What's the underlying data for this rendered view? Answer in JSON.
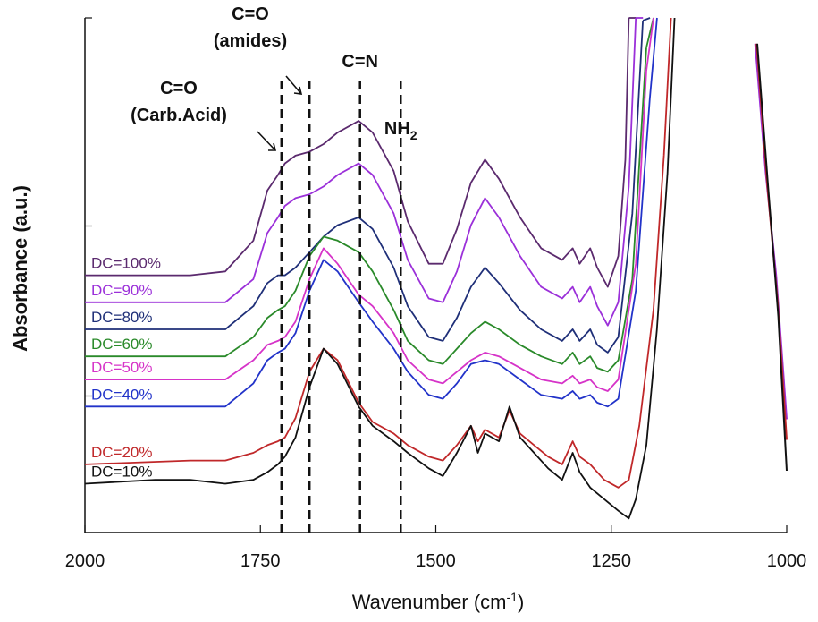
{
  "chart_data": {
    "type": "line",
    "xlabel": "Wavenumber (cm",
    "xlabel_superscript": "-1",
    "xlabel_suffix": ")",
    "ylabel": "Absorbance (a.u.)",
    "xlim": [
      2000,
      1000
    ],
    "x_reversed": true,
    "x_ticks": [
      2000,
      1750,
      1500,
      1250,
      1000
    ],
    "x_tick_labels": [
      "2000",
      "1750",
      "1500",
      "1250",
      "1000"
    ],
    "y_ticks_labeled": false,
    "annotations": [
      {
        "id": "c-o-carb-acid",
        "lines": [
          "C=O",
          "(Carb.Acid)"
        ],
        "x": 1720
      },
      {
        "id": "c-o-amides",
        "lines": [
          "C=O",
          "(amides)"
        ],
        "x": 1680
      },
      {
        "id": "c-n",
        "lines": [
          "C=N"
        ],
        "x": 1608
      },
      {
        "id": "nh2",
        "text": "NH",
        "subscript": "2",
        "x": 1550
      }
    ],
    "series": [
      {
        "name": "DC=100%",
        "color": "#5b2a6e",
        "offset": 0.62,
        "points": [
          [
            2000,
            0.0
          ],
          [
            1850,
            0.0
          ],
          [
            1800,
            0.01
          ],
          [
            1760,
            0.09
          ],
          [
            1740,
            0.22
          ],
          [
            1725,
            0.26
          ],
          [
            1715,
            0.29
          ],
          [
            1700,
            0.31
          ],
          [
            1680,
            0.32
          ],
          [
            1660,
            0.34
          ],
          [
            1640,
            0.37
          ],
          [
            1610,
            0.4
          ],
          [
            1590,
            0.37
          ],
          [
            1560,
            0.27
          ],
          [
            1540,
            0.14
          ],
          [
            1510,
            0.03
          ],
          [
            1490,
            0.03
          ],
          [
            1470,
            0.12
          ],
          [
            1450,
            0.24
          ],
          [
            1430,
            0.3
          ],
          [
            1410,
            0.25
          ],
          [
            1380,
            0.15
          ],
          [
            1350,
            0.07
          ],
          [
            1320,
            0.04
          ],
          [
            1305,
            0.07
          ],
          [
            1295,
            0.03
          ],
          [
            1280,
            0.07
          ],
          [
            1270,
            0.02
          ],
          [
            1255,
            -0.03
          ],
          [
            1240,
            0.05
          ],
          [
            1230,
            0.3
          ],
          [
            1225,
            0.8
          ]
        ]
      },
      {
        "name": "DC=90%",
        "color": "#9b30d9",
        "offset": 0.55,
        "points": [
          [
            2000,
            0.0
          ],
          [
            1850,
            0.0
          ],
          [
            1800,
            0.0
          ],
          [
            1760,
            0.06
          ],
          [
            1740,
            0.18
          ],
          [
            1725,
            0.22
          ],
          [
            1715,
            0.25
          ],
          [
            1700,
            0.27
          ],
          [
            1680,
            0.28
          ],
          [
            1660,
            0.3
          ],
          [
            1640,
            0.33
          ],
          [
            1610,
            0.36
          ],
          [
            1590,
            0.33
          ],
          [
            1560,
            0.23
          ],
          [
            1540,
            0.11
          ],
          [
            1510,
            0.01
          ],
          [
            1490,
            0.0
          ],
          [
            1470,
            0.08
          ],
          [
            1450,
            0.2
          ],
          [
            1430,
            0.27
          ],
          [
            1410,
            0.22
          ],
          [
            1380,
            0.12
          ],
          [
            1350,
            0.04
          ],
          [
            1320,
            0.01
          ],
          [
            1305,
            0.04
          ],
          [
            1295,
            0.0
          ],
          [
            1280,
            0.04
          ],
          [
            1270,
            -0.01
          ],
          [
            1255,
            -0.06
          ],
          [
            1240,
            0.0
          ],
          [
            1225,
            0.3
          ],
          [
            1215,
            0.8
          ]
        ]
      },
      {
        "name": "DC=80%",
        "color": "#1f2f78",
        "offset": 0.48,
        "points": [
          [
            2000,
            0.0
          ],
          [
            1850,
            0.0
          ],
          [
            1800,
            0.0
          ],
          [
            1760,
            0.06
          ],
          [
            1740,
            0.12
          ],
          [
            1725,
            0.14
          ],
          [
            1715,
            0.14
          ],
          [
            1700,
            0.16
          ],
          [
            1680,
            0.2
          ],
          [
            1660,
            0.24
          ],
          [
            1640,
            0.27
          ],
          [
            1610,
            0.29
          ],
          [
            1590,
            0.26
          ],
          [
            1560,
            0.16
          ],
          [
            1540,
            0.06
          ],
          [
            1510,
            -0.02
          ],
          [
            1490,
            -0.03
          ],
          [
            1470,
            0.03
          ],
          [
            1450,
            0.11
          ],
          [
            1430,
            0.16
          ],
          [
            1410,
            0.12
          ],
          [
            1380,
            0.05
          ],
          [
            1350,
            0.0
          ],
          [
            1320,
            -0.03
          ],
          [
            1305,
            0.0
          ],
          [
            1295,
            -0.03
          ],
          [
            1280,
            0.0
          ],
          [
            1270,
            -0.04
          ],
          [
            1255,
            -0.06
          ],
          [
            1240,
            -0.02
          ],
          [
            1220,
            0.3
          ],
          [
            1205,
            0.8
          ]
        ]
      },
      {
        "name": "DC=60%",
        "color": "#2a8a2a",
        "offset": 0.41,
        "points": [
          [
            2000,
            0.0
          ],
          [
            1850,
            0.0
          ],
          [
            1800,
            0.0
          ],
          [
            1760,
            0.05
          ],
          [
            1740,
            0.1
          ],
          [
            1725,
            0.12
          ],
          [
            1715,
            0.13
          ],
          [
            1700,
            0.17
          ],
          [
            1680,
            0.26
          ],
          [
            1660,
            0.31
          ],
          [
            1640,
            0.3
          ],
          [
            1610,
            0.27
          ],
          [
            1590,
            0.22
          ],
          [
            1560,
            0.12
          ],
          [
            1540,
            0.04
          ],
          [
            1510,
            -0.01
          ],
          [
            1490,
            -0.02
          ],
          [
            1470,
            0.02
          ],
          [
            1450,
            0.06
          ],
          [
            1430,
            0.09
          ],
          [
            1410,
            0.07
          ],
          [
            1380,
            0.03
          ],
          [
            1350,
            0.0
          ],
          [
            1320,
            -0.02
          ],
          [
            1305,
            0.01
          ],
          [
            1295,
            -0.02
          ],
          [
            1280,
            0.0
          ],
          [
            1270,
            -0.03
          ],
          [
            1255,
            -0.04
          ],
          [
            1240,
            -0.01
          ],
          [
            1220,
            0.2
          ],
          [
            1200,
            0.8
          ]
        ]
      },
      {
        "name": "DC=50%",
        "color": "#d633c8",
        "offset": 0.35,
        "points": [
          [
            2000,
            0.0
          ],
          [
            1850,
            0.0
          ],
          [
            1800,
            0.0
          ],
          [
            1760,
            0.05
          ],
          [
            1740,
            0.09
          ],
          [
            1725,
            0.1
          ],
          [
            1715,
            0.11
          ],
          [
            1700,
            0.15
          ],
          [
            1680,
            0.26
          ],
          [
            1660,
            0.34
          ],
          [
            1640,
            0.3
          ],
          [
            1610,
            0.22
          ],
          [
            1590,
            0.19
          ],
          [
            1560,
            0.12
          ],
          [
            1540,
            0.05
          ],
          [
            1510,
            0.0
          ],
          [
            1490,
            -0.01
          ],
          [
            1470,
            0.02
          ],
          [
            1450,
            0.05
          ],
          [
            1430,
            0.07
          ],
          [
            1410,
            0.06
          ],
          [
            1380,
            0.03
          ],
          [
            1350,
            0.0
          ],
          [
            1320,
            -0.01
          ],
          [
            1305,
            0.01
          ],
          [
            1295,
            -0.01
          ],
          [
            1280,
            0.0
          ],
          [
            1270,
            -0.02
          ],
          [
            1255,
            -0.03
          ],
          [
            1240,
            0.0
          ],
          [
            1215,
            0.3
          ],
          [
            1200,
            0.8
          ]
        ]
      },
      {
        "name": "DC=40%",
        "color": "#2233c9",
        "offset": 0.28,
        "points": [
          [
            2000,
            0.0
          ],
          [
            1850,
            0.0
          ],
          [
            1800,
            0.0
          ],
          [
            1760,
            0.06
          ],
          [
            1740,
            0.12
          ],
          [
            1725,
            0.14
          ],
          [
            1715,
            0.15
          ],
          [
            1700,
            0.19
          ],
          [
            1680,
            0.3
          ],
          [
            1660,
            0.38
          ],
          [
            1640,
            0.35
          ],
          [
            1610,
            0.27
          ],
          [
            1590,
            0.22
          ],
          [
            1560,
            0.15
          ],
          [
            1540,
            0.09
          ],
          [
            1510,
            0.03
          ],
          [
            1490,
            0.02
          ],
          [
            1470,
            0.06
          ],
          [
            1450,
            0.11
          ],
          [
            1430,
            0.12
          ],
          [
            1410,
            0.11
          ],
          [
            1380,
            0.07
          ],
          [
            1350,
            0.03
          ],
          [
            1320,
            0.02
          ],
          [
            1305,
            0.04
          ],
          [
            1295,
            0.02
          ],
          [
            1280,
            0.03
          ],
          [
            1270,
            0.01
          ],
          [
            1255,
            0.0
          ],
          [
            1240,
            0.02
          ],
          [
            1215,
            0.3
          ],
          [
            1195,
            0.8
          ]
        ]
      },
      {
        "name": "DC=20%",
        "color": "#c0282a",
        "offset": 0.13,
        "points": [
          [
            2000,
            0.0
          ],
          [
            1850,
            0.01
          ],
          [
            1800,
            0.01
          ],
          [
            1760,
            0.03
          ],
          [
            1740,
            0.05
          ],
          [
            1725,
            0.06
          ],
          [
            1715,
            0.07
          ],
          [
            1700,
            0.12
          ],
          [
            1680,
            0.24
          ],
          [
            1660,
            0.3
          ],
          [
            1640,
            0.27
          ],
          [
            1610,
            0.16
          ],
          [
            1590,
            0.11
          ],
          [
            1560,
            0.08
          ],
          [
            1540,
            0.05
          ],
          [
            1510,
            0.02
          ],
          [
            1490,
            0.01
          ],
          [
            1470,
            0.05
          ],
          [
            1450,
            0.1
          ],
          [
            1440,
            0.06
          ],
          [
            1430,
            0.09
          ],
          [
            1410,
            0.07
          ],
          [
            1395,
            0.14
          ],
          [
            1380,
            0.08
          ],
          [
            1360,
            0.05
          ],
          [
            1340,
            0.02
          ],
          [
            1320,
            0.0
          ],
          [
            1305,
            0.06
          ],
          [
            1295,
            0.02
          ],
          [
            1280,
            0.0
          ],
          [
            1260,
            -0.04
          ],
          [
            1240,
            -0.06
          ],
          [
            1225,
            -0.04
          ],
          [
            1210,
            0.1
          ],
          [
            1190,
            0.4
          ],
          [
            1175,
            0.8
          ]
        ]
      },
      {
        "name": "DC=10%",
        "color": "#111111",
        "offset": 0.08,
        "points": [
          [
            2000,
            0.0
          ],
          [
            1900,
            0.01
          ],
          [
            1850,
            0.01
          ],
          [
            1800,
            0.0
          ],
          [
            1760,
            0.01
          ],
          [
            1740,
            0.03
          ],
          [
            1725,
            0.05
          ],
          [
            1715,
            0.07
          ],
          [
            1700,
            0.12
          ],
          [
            1680,
            0.25
          ],
          [
            1660,
            0.35
          ],
          [
            1640,
            0.31
          ],
          [
            1610,
            0.2
          ],
          [
            1590,
            0.15
          ],
          [
            1560,
            0.11
          ],
          [
            1540,
            0.08
          ],
          [
            1510,
            0.04
          ],
          [
            1490,
            0.02
          ],
          [
            1470,
            0.08
          ],
          [
            1450,
            0.15
          ],
          [
            1440,
            0.08
          ],
          [
            1430,
            0.13
          ],
          [
            1410,
            0.11
          ],
          [
            1395,
            0.2
          ],
          [
            1380,
            0.12
          ],
          [
            1360,
            0.08
          ],
          [
            1340,
            0.04
          ],
          [
            1320,
            0.01
          ],
          [
            1305,
            0.08
          ],
          [
            1295,
            0.03
          ],
          [
            1280,
            -0.01
          ],
          [
            1260,
            -0.04
          ],
          [
            1240,
            -0.07
          ],
          [
            1225,
            -0.09
          ],
          [
            1215,
            -0.04
          ],
          [
            1200,
            0.1
          ],
          [
            1185,
            0.4
          ],
          [
            1170,
            0.8
          ]
        ]
      }
    ],
    "right_tails": [
      {
        "color": "#9b30d9",
        "points": [
          [
            1045,
            0.95
          ],
          [
            1030,
            0.7
          ],
          [
            1015,
            0.5
          ],
          [
            1000,
            0.22
          ]
        ]
      },
      {
        "color": "#c0282a",
        "points": [
          [
            1043,
            0.95
          ],
          [
            1028,
            0.68
          ],
          [
            1013,
            0.45
          ],
          [
            1000,
            0.18
          ]
        ]
      },
      {
        "color": "#111111",
        "points": [
          [
            1042,
            0.95
          ],
          [
            1027,
            0.68
          ],
          [
            1012,
            0.42
          ],
          [
            1000,
            0.12
          ]
        ]
      }
    ],
    "grid": false,
    "legend": "inline labels at left of each curve"
  }
}
